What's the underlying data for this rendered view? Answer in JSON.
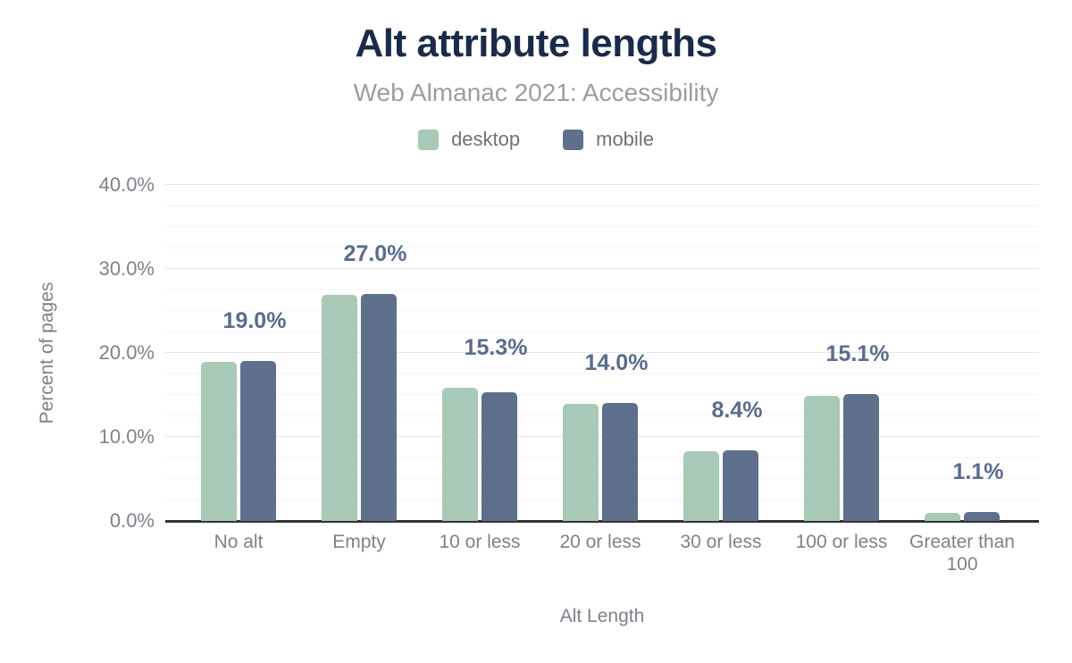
{
  "header": {
    "title": "Alt attribute lengths",
    "subtitle": "Web Almanac 2021: Accessibility"
  },
  "legend": [
    {
      "label": "desktop",
      "color": "#a7c9b5"
    },
    {
      "label": "mobile",
      "color": "#5e708b"
    }
  ],
  "chart_data": {
    "type": "bar",
    "title": "Alt attribute lengths",
    "subtitle": "Web Almanac 2021: Accessibility",
    "categories": [
      "No alt",
      "Empty",
      "10 or less",
      "20 or less",
      "30 or less",
      "100 or less",
      "Greater than 100"
    ],
    "series": [
      {
        "name": "desktop",
        "color": "#a7c9b5",
        "values": [
          18.9,
          26.9,
          15.9,
          13.9,
          8.3,
          14.9,
          1.0
        ]
      },
      {
        "name": "mobile",
        "color": "#5e708b",
        "values": [
          19.0,
          27.0,
          15.3,
          14.0,
          8.4,
          15.1,
          1.1
        ]
      }
    ],
    "bar_labels": [
      "19.0%",
      "27.0%",
      "15.3%",
      "14.0%",
      "8.4%",
      "15.1%",
      "1.1%"
    ],
    "bar_label_color": "#5a6c8e",
    "xlabel": "Alt Length",
    "ylabel": "Percent of pages",
    "ylim": [
      0,
      40
    ],
    "yticks": [
      "0.0%",
      "10.0%",
      "20.0%",
      "30.0%",
      "40.0%"
    ],
    "grid": {
      "major_step_pct": 10,
      "minor_step_pct": 2.5
    },
    "legend_position": "top"
  }
}
